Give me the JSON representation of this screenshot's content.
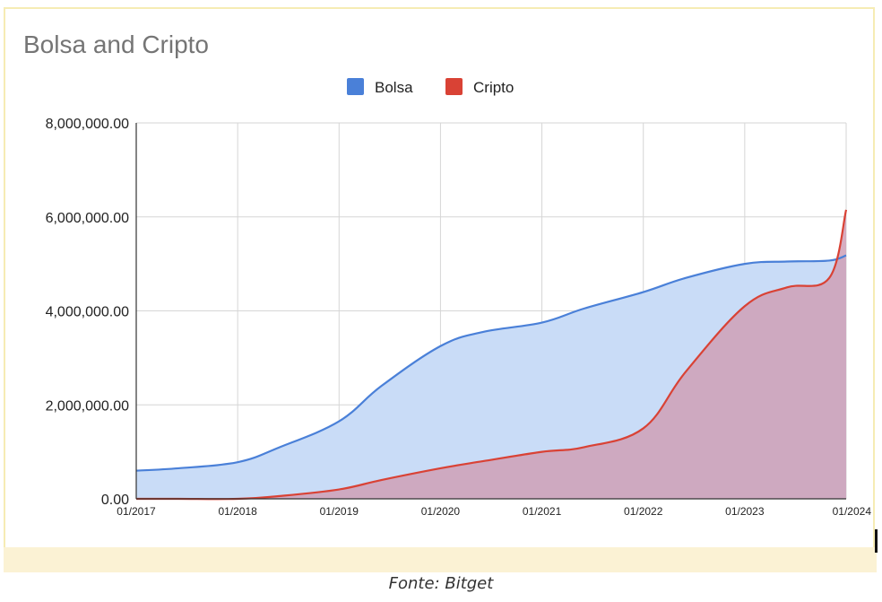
{
  "caption": "Fonte: Bitget",
  "colors": {
    "bolsa_line": "#4a80d8",
    "bolsa_fill": "#c9dcf7",
    "cripto_line": "#d94235",
    "cripto_fill": "#cfa0b6"
  },
  "chart_data": {
    "type": "area",
    "title": "Bolsa and Cripto",
    "xlabel": "",
    "ylabel": "",
    "legend_position": "top",
    "grid": true,
    "x_ticks": [
      "01/2017",
      "01/2018",
      "01/2019",
      "01/2020",
      "01/2021",
      "01/2022",
      "01/2023",
      "01/2024"
    ],
    "xlim": [
      "01/2017",
      "01/2024"
    ],
    "y_ticks": [
      "0.00",
      "2,000,000.00",
      "4,000,000.00",
      "6,000,000.00",
      "8,000,000.00"
    ],
    "ylim": [
      0,
      8000000
    ],
    "series": [
      {
        "name": "Bolsa",
        "x": [
          "01/2017",
          "06/2017",
          "01/2018",
          "06/2018",
          "01/2019",
          "06/2019",
          "01/2020",
          "06/2020",
          "01/2021",
          "06/2021",
          "01/2022",
          "06/2022",
          "01/2023",
          "06/2023",
          "11/2023",
          "01/2024"
        ],
        "values": [
          600000,
          650000,
          780000,
          1100000,
          1650000,
          2400000,
          3250000,
          3550000,
          3750000,
          4050000,
          4400000,
          4700000,
          5000000,
          5050000,
          5070000,
          5180000
        ]
      },
      {
        "name": "Cripto",
        "x": [
          "01/2017",
          "06/2017",
          "01/2018",
          "06/2018",
          "01/2019",
          "06/2019",
          "01/2020",
          "06/2020",
          "01/2021",
          "06/2021",
          "01/2022",
          "06/2022",
          "01/2023",
          "06/2023",
          "11/2023",
          "01/2024"
        ],
        "values": [
          0,
          0,
          0,
          60000,
          200000,
          400000,
          650000,
          800000,
          1000000,
          1100000,
          1500000,
          2700000,
          4100000,
          4500000,
          4700000,
          6150000
        ]
      }
    ]
  }
}
